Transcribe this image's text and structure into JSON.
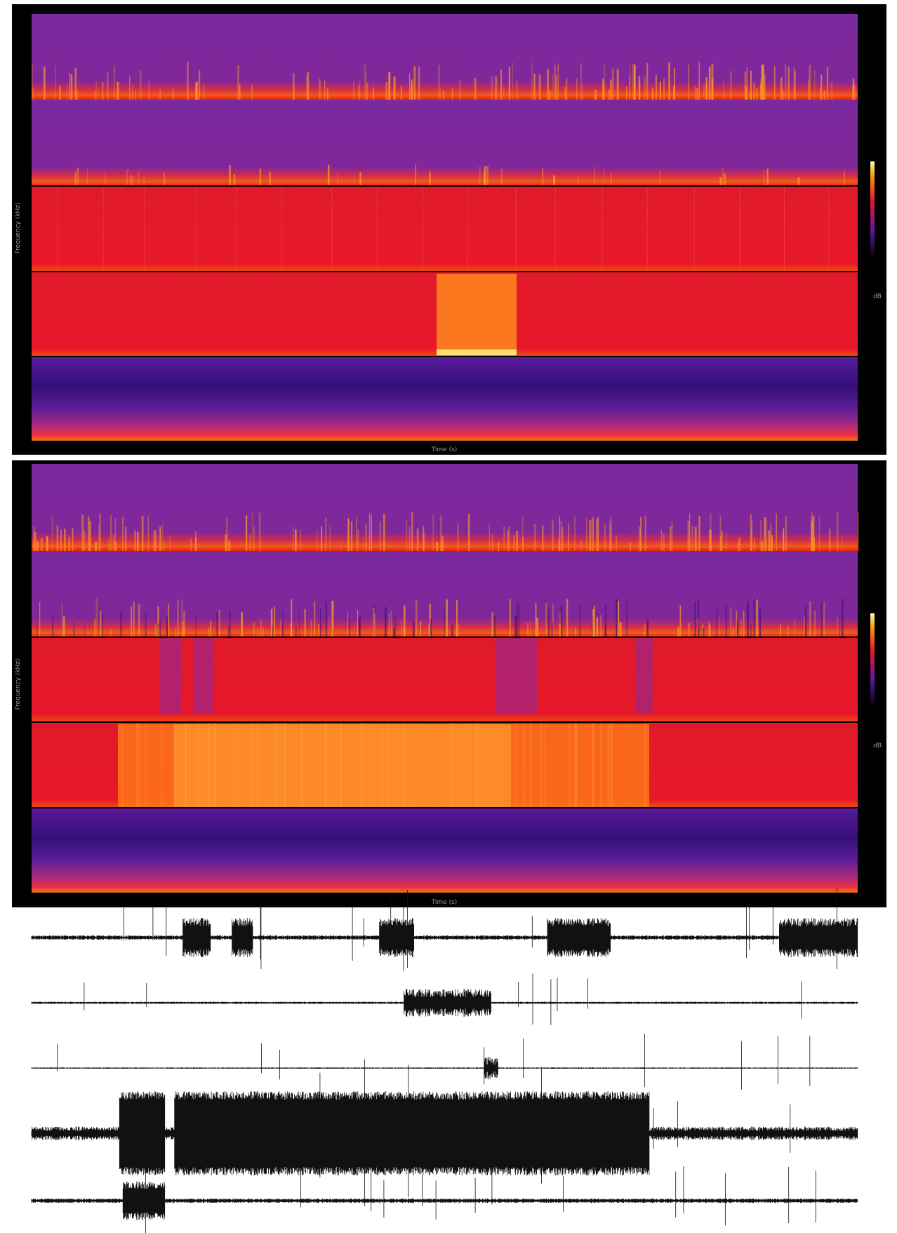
{
  "panels": [
    {
      "y_axis_label": "Frequency (kHz)",
      "x_axis_label": "Time (s)",
      "colorbar_label": "dB"
    },
    {
      "y_axis_label": "Frequency (kHz)",
      "x_axis_label": "Time (s)",
      "colorbar_label": "dB"
    }
  ]
}
